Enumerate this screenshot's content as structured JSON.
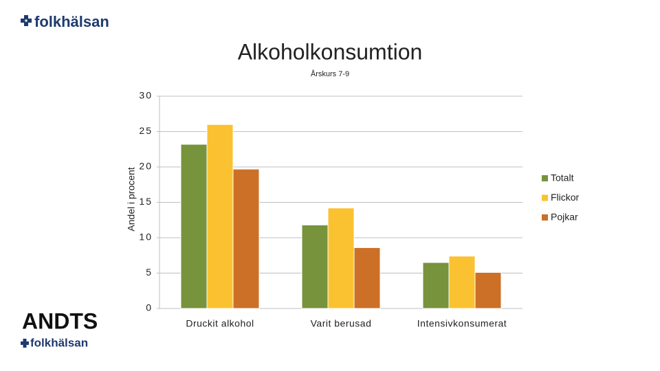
{
  "logo_top": "folkhälsan",
  "logo_bottom": {
    "title": "ANDTS",
    "brand": "folkhälsan"
  },
  "chart_data": {
    "type": "bar",
    "title": "Alkoholkonsumtion",
    "subtitle": "Årskurs 7-9",
    "y_label": "Andel i procent",
    "categories": [
      "Druckit alkohol",
      "Varit berusad",
      "Intensivkonsumerat"
    ],
    "series": [
      {
        "name": "Totalt",
        "color": "#77933c",
        "values": [
          23.2,
          11.8,
          6.5
        ]
      },
      {
        "name": "Flickor",
        "color": "#fac230",
        "values": [
          26,
          14.2,
          7.4
        ]
      },
      {
        "name": "Pojkar",
        "color": "#cc7028",
        "values": [
          19.7,
          8.6,
          5.1
        ]
      }
    ],
    "ylim": [
      0,
      30
    ],
    "yticks": [
      0,
      5,
      10,
      15,
      20,
      25,
      30
    ],
    "grid": true,
    "legend": "right"
  }
}
